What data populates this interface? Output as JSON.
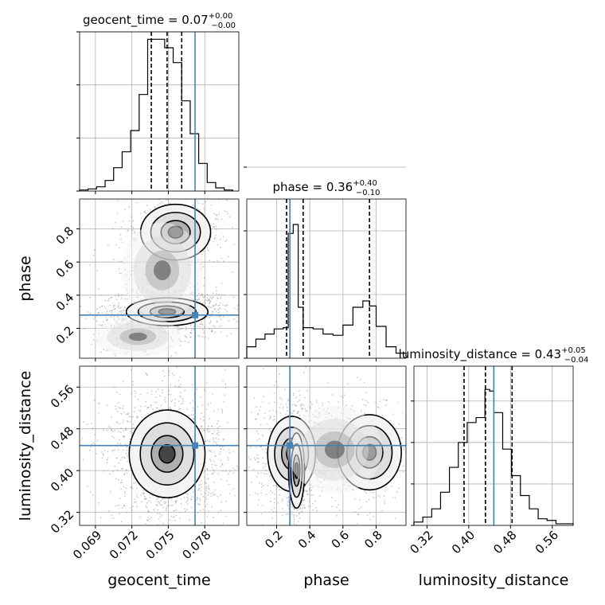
{
  "chart_data": {
    "type": "corner",
    "parameters": [
      "geocent_time",
      "phase",
      "luminosity_distance"
    ],
    "truths": {
      "geocent_time": 0.0772,
      "phase": 0.28,
      "luminosity_distance": 0.448
    },
    "marginals": [
      {
        "parameter": "geocent_time",
        "title_prefix": "geocent_time = 0.07",
        "plus": "+0.00",
        "minus": "−0.00",
        "quantiles": [
          0.0736,
          0.0749,
          0.0761
        ],
        "xlim": [
          0.0677,
          0.0808
        ],
        "bins_x": [
          0.0677,
          0.0684,
          0.0691,
          0.0698,
          0.0705,
          0.0712,
          0.0719,
          0.0726,
          0.0733,
          0.074,
          0.0747,
          0.0754,
          0.0761,
          0.0768,
          0.0775,
          0.0782,
          0.0789,
          0.0796,
          0.0803
        ],
        "counts": [
          1,
          2,
          4,
          10,
          22,
          37,
          57,
          91,
          143,
          143,
          135,
          121,
          85,
          54,
          26,
          8,
          3,
          1
        ]
      },
      {
        "parameter": "phase",
        "title_prefix": "phase = 0.36",
        "plus": "+0.40",
        "minus": "−0.10",
        "quantiles": [
          0.26,
          0.36,
          0.76
        ],
        "xlim": [
          0.02,
          0.98
        ],
        "bins_x": [
          0.02,
          0.075,
          0.13,
          0.185,
          0.24,
          0.27,
          0.3,
          0.33,
          0.36,
          0.42,
          0.48,
          0.54,
          0.6,
          0.66,
          0.72,
          0.76,
          0.8,
          0.86,
          0.92,
          0.98
        ],
        "counts": [
          9,
          15,
          19,
          23,
          24,
          98,
          105,
          40,
          24,
          23,
          19,
          18,
          26,
          40,
          45,
          41,
          25,
          9,
          4
        ]
      },
      {
        "parameter": "luminosity_distance",
        "title_prefix": "luminosity_distance = 0.43",
        "plus": "+0.05",
        "minus": "−0.04",
        "quantiles": [
          0.391,
          0.432,
          0.483
        ],
        "xlim": [
          0.295,
          0.6
        ],
        "bins_x": [
          0.295,
          0.312,
          0.329,
          0.346,
          0.363,
          0.38,
          0.397,
          0.414,
          0.431,
          0.44,
          0.448,
          0.465,
          0.482,
          0.499,
          0.516,
          0.533,
          0.55,
          0.567,
          0.584,
          0.6
        ],
        "counts": [
          2,
          5,
          10,
          20,
          35,
          50,
          62,
          65,
          82,
          81,
          68,
          46,
          30,
          18,
          10,
          4,
          3,
          1,
          1
        ]
      }
    ],
    "axes": {
      "geocent_time": {
        "ticks": [
          0.069,
          0.072,
          0.075,
          0.078
        ],
        "tick_labels": [
          "0.069",
          "0.072",
          "0.075",
          "0.078"
        ]
      },
      "phase": {
        "ticks": [
          0.2,
          0.4,
          0.6,
          0.8
        ],
        "tick_labels": [
          "0.2",
          "0.4",
          "0.6",
          "0.8"
        ]
      },
      "luminosity_distance": {
        "ticks": [
          0.32,
          0.4,
          0.48,
          0.56
        ],
        "tick_labels": [
          "0.32",
          "0.40",
          "0.48",
          "0.56"
        ]
      }
    },
    "marginal_yticks": [
      [
        0,
        50,
        100,
        150
      ],
      [
        0,
        50,
        100,
        150
      ],
      [
        0,
        25,
        50,
        75
      ]
    ],
    "marginal_ylim": [
      150,
      125,
      96
    ],
    "joint_blobs": {
      "geocent_time|phase": [
        {
          "cx": 0.0756,
          "cy": 0.78,
          "sx": 0.0012,
          "sy": 0.07,
          "w": 1.0
        },
        {
          "cx": 0.0749,
          "cy": 0.3,
          "sx": 0.0014,
          "sy": 0.035,
          "w": 2.2
        },
        {
          "cx": 0.0745,
          "cy": 0.55,
          "sx": 0.0014,
          "sy": 0.12,
          "w": 0.4
        },
        {
          "cx": 0.0725,
          "cy": 0.15,
          "sx": 0.0015,
          "sy": 0.05,
          "w": 0.3
        }
      ],
      "geocent_time|luminosity_distance": [
        {
          "cx": 0.0749,
          "cy": 0.432,
          "sx": 0.0013,
          "sy": 0.035,
          "w": 1.0
        }
      ],
      "phase|luminosity_distance": [
        {
          "cx": 0.29,
          "cy": 0.432,
          "sx": 0.06,
          "sy": 0.03,
          "w": 1.5
        },
        {
          "cx": 0.32,
          "cy": 0.4,
          "sx": 0.02,
          "sy": 0.03,
          "w": 0.8
        },
        {
          "cx": 0.76,
          "cy": 0.435,
          "sx": 0.08,
          "sy": 0.03,
          "w": 0.9
        },
        {
          "cx": 0.55,
          "cy": 0.44,
          "sx": 0.12,
          "sy": 0.035,
          "w": 0.35
        }
      ]
    },
    "grid": true,
    "truth_color": "#4682b4",
    "line_color": "#000000"
  }
}
